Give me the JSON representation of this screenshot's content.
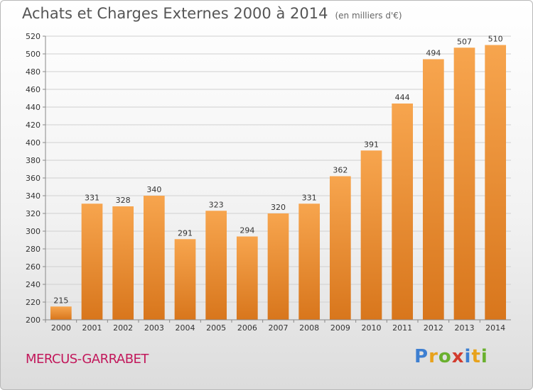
{
  "header": {
    "title": "Achats et Charges Externes 2000 à 2014",
    "subtitle": "(en milliers d'€)"
  },
  "footer": {
    "place": "MERCUS-GARRABET",
    "logo_letters": [
      {
        "ch": "P",
        "color": "#3d7fd1"
      },
      {
        "ch": "r",
        "color": "#e8a21c"
      },
      {
        "ch": "o",
        "color": "#6ab02e"
      },
      {
        "ch": "x",
        "color": "#d23c2e"
      },
      {
        "ch": "i",
        "color": "#3d7fd1"
      },
      {
        "ch": "t",
        "color": "#e8a21c"
      },
      {
        "ch": "i",
        "color": "#6ab02e"
      }
    ]
  },
  "colors": {
    "bar_light": "#f7a54e",
    "bar_dark": "#d8761c",
    "grid": "#d0d0d0"
  },
  "chart_data": {
    "type": "bar",
    "title": "Achats et Charges Externes 2000 à 2014",
    "subtitle": "(en milliers d'€)",
    "categories": [
      "2000",
      "2001",
      "2002",
      "2003",
      "2004",
      "2005",
      "2006",
      "2007",
      "2008",
      "2009",
      "2010",
      "2011",
      "2012",
      "2013",
      "2014"
    ],
    "values": [
      215,
      331,
      328,
      340,
      291,
      323,
      294,
      320,
      331,
      362,
      391,
      444,
      494,
      507,
      510
    ],
    "data_labels": [
      "215",
      "331",
      "328",
      "340",
      "291",
      "323",
      "294",
      "320",
      "331",
      "362",
      "391",
      "444",
      "494",
      "507",
      "510"
    ],
    "ylim": [
      200,
      520
    ],
    "yticks": [
      200,
      220,
      240,
      260,
      280,
      300,
      320,
      340,
      360,
      380,
      400,
      420,
      440,
      460,
      480,
      500,
      520
    ],
    "grid": true,
    "xlabel": "",
    "ylabel": ""
  }
}
